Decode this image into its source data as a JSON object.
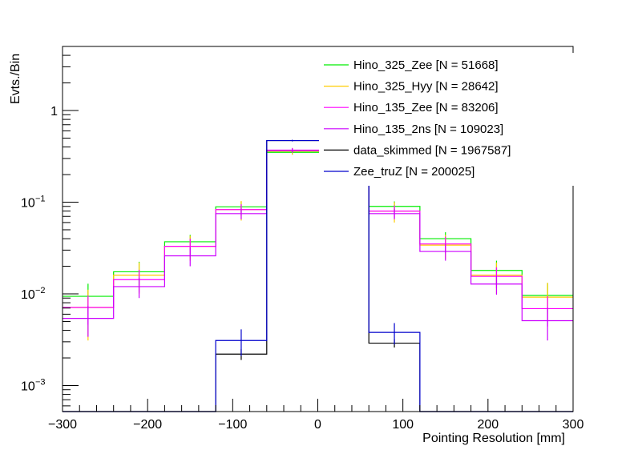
{
  "chart_data": {
    "type": "histogram-step",
    "title": "",
    "xlabel": "Pointing Resolution [mm]",
    "ylabel": "Evts./Bin",
    "xlim": [
      -300,
      300
    ],
    "ylim": [
      0.00052,
      5.0
    ],
    "yscale": "log",
    "legend_position": "top-right",
    "grid": false,
    "bin_edges": [
      -300,
      -240,
      -180,
      -120,
      -60,
      0,
      60,
      120,
      180,
      240,
      300
    ],
    "x_ticks": [
      -300,
      -200,
      -100,
      0,
      100,
      200,
      300
    ],
    "x_tick_labels": [
      "−300",
      "−200",
      "−100",
      "0",
      "100",
      "200",
      "300"
    ],
    "y_ticks": [
      {
        "value": 0.001,
        "base": "10",
        "exp": "−3"
      },
      {
        "value": 0.01,
        "base": "10",
        "exp": "−2"
      },
      {
        "value": 0.1,
        "base": "10",
        "exp": "−1"
      },
      {
        "value": 1,
        "base": "1",
        "exp": ""
      }
    ],
    "series": [
      {
        "name": "Hino_325_Zee [N = 51668]",
        "color": "#00ee00",
        "values": [
          0.0094,
          0.0174,
          0.037,
          0.089,
          0.35,
          0.35,
          0.09,
          0.04,
          0.018,
          0.0096
        ],
        "errors": [
          0.0035,
          0.005,
          0.007,
          0.012,
          0.02,
          0.02,
          0.012,
          0.007,
          0.005,
          0.0035
        ]
      },
      {
        "name": "Hino_325_Hyy [N = 28642]",
        "color": "#ffcc00",
        "values": [
          0.0071,
          0.016,
          0.033,
          0.083,
          0.36,
          0.36,
          0.08,
          0.034,
          0.016,
          0.0092
        ],
        "errors": [
          0.004,
          0.006,
          0.01,
          0.02,
          0.03,
          0.03,
          0.02,
          0.01,
          0.006,
          0.004
        ]
      },
      {
        "name": "Hino_135_Zee [N = 83206]",
        "color": "#ff00ff",
        "values": [
          0.0071,
          0.0143,
          0.033,
          0.083,
          0.37,
          0.37,
          0.08,
          0.035,
          0.0155,
          0.0069
        ],
        "errors": [
          0.0025,
          0.004,
          0.007,
          0.012,
          0.02,
          0.02,
          0.012,
          0.007,
          0.004,
          0.0025
        ]
      },
      {
        "name": "Hino_135_2ns [N = 109023]",
        "color": "#cc00ff",
        "values": [
          0.0054,
          0.012,
          0.026,
          0.075,
          0.366,
          0.366,
          0.075,
          0.029,
          0.0128,
          0.0051
        ],
        "errors": [
          0.002,
          0.003,
          0.006,
          0.01,
          0.02,
          0.02,
          0.01,
          0.006,
          0.003,
          0.002
        ]
      },
      {
        "name": "data_skimmed [N = 1967587]",
        "color": "#000000",
        "values": [
          0,
          0,
          0,
          0.0022,
          0.47,
          0.47,
          0.0029,
          0,
          0,
          0
        ],
        "errors": [
          0,
          0,
          0,
          0.0003,
          0.005,
          0.005,
          0.0003,
          0,
          0,
          0
        ]
      },
      {
        "name": "Zee_truZ [N = 200025]",
        "color": "#0000cc",
        "values": [
          0,
          0,
          0,
          0.0031,
          0.47,
          0.47,
          0.0038,
          0,
          0,
          0
        ],
        "errors": [
          0,
          0,
          0,
          0.001,
          0.01,
          0.01,
          0.001,
          0,
          0,
          0
        ]
      }
    ]
  }
}
